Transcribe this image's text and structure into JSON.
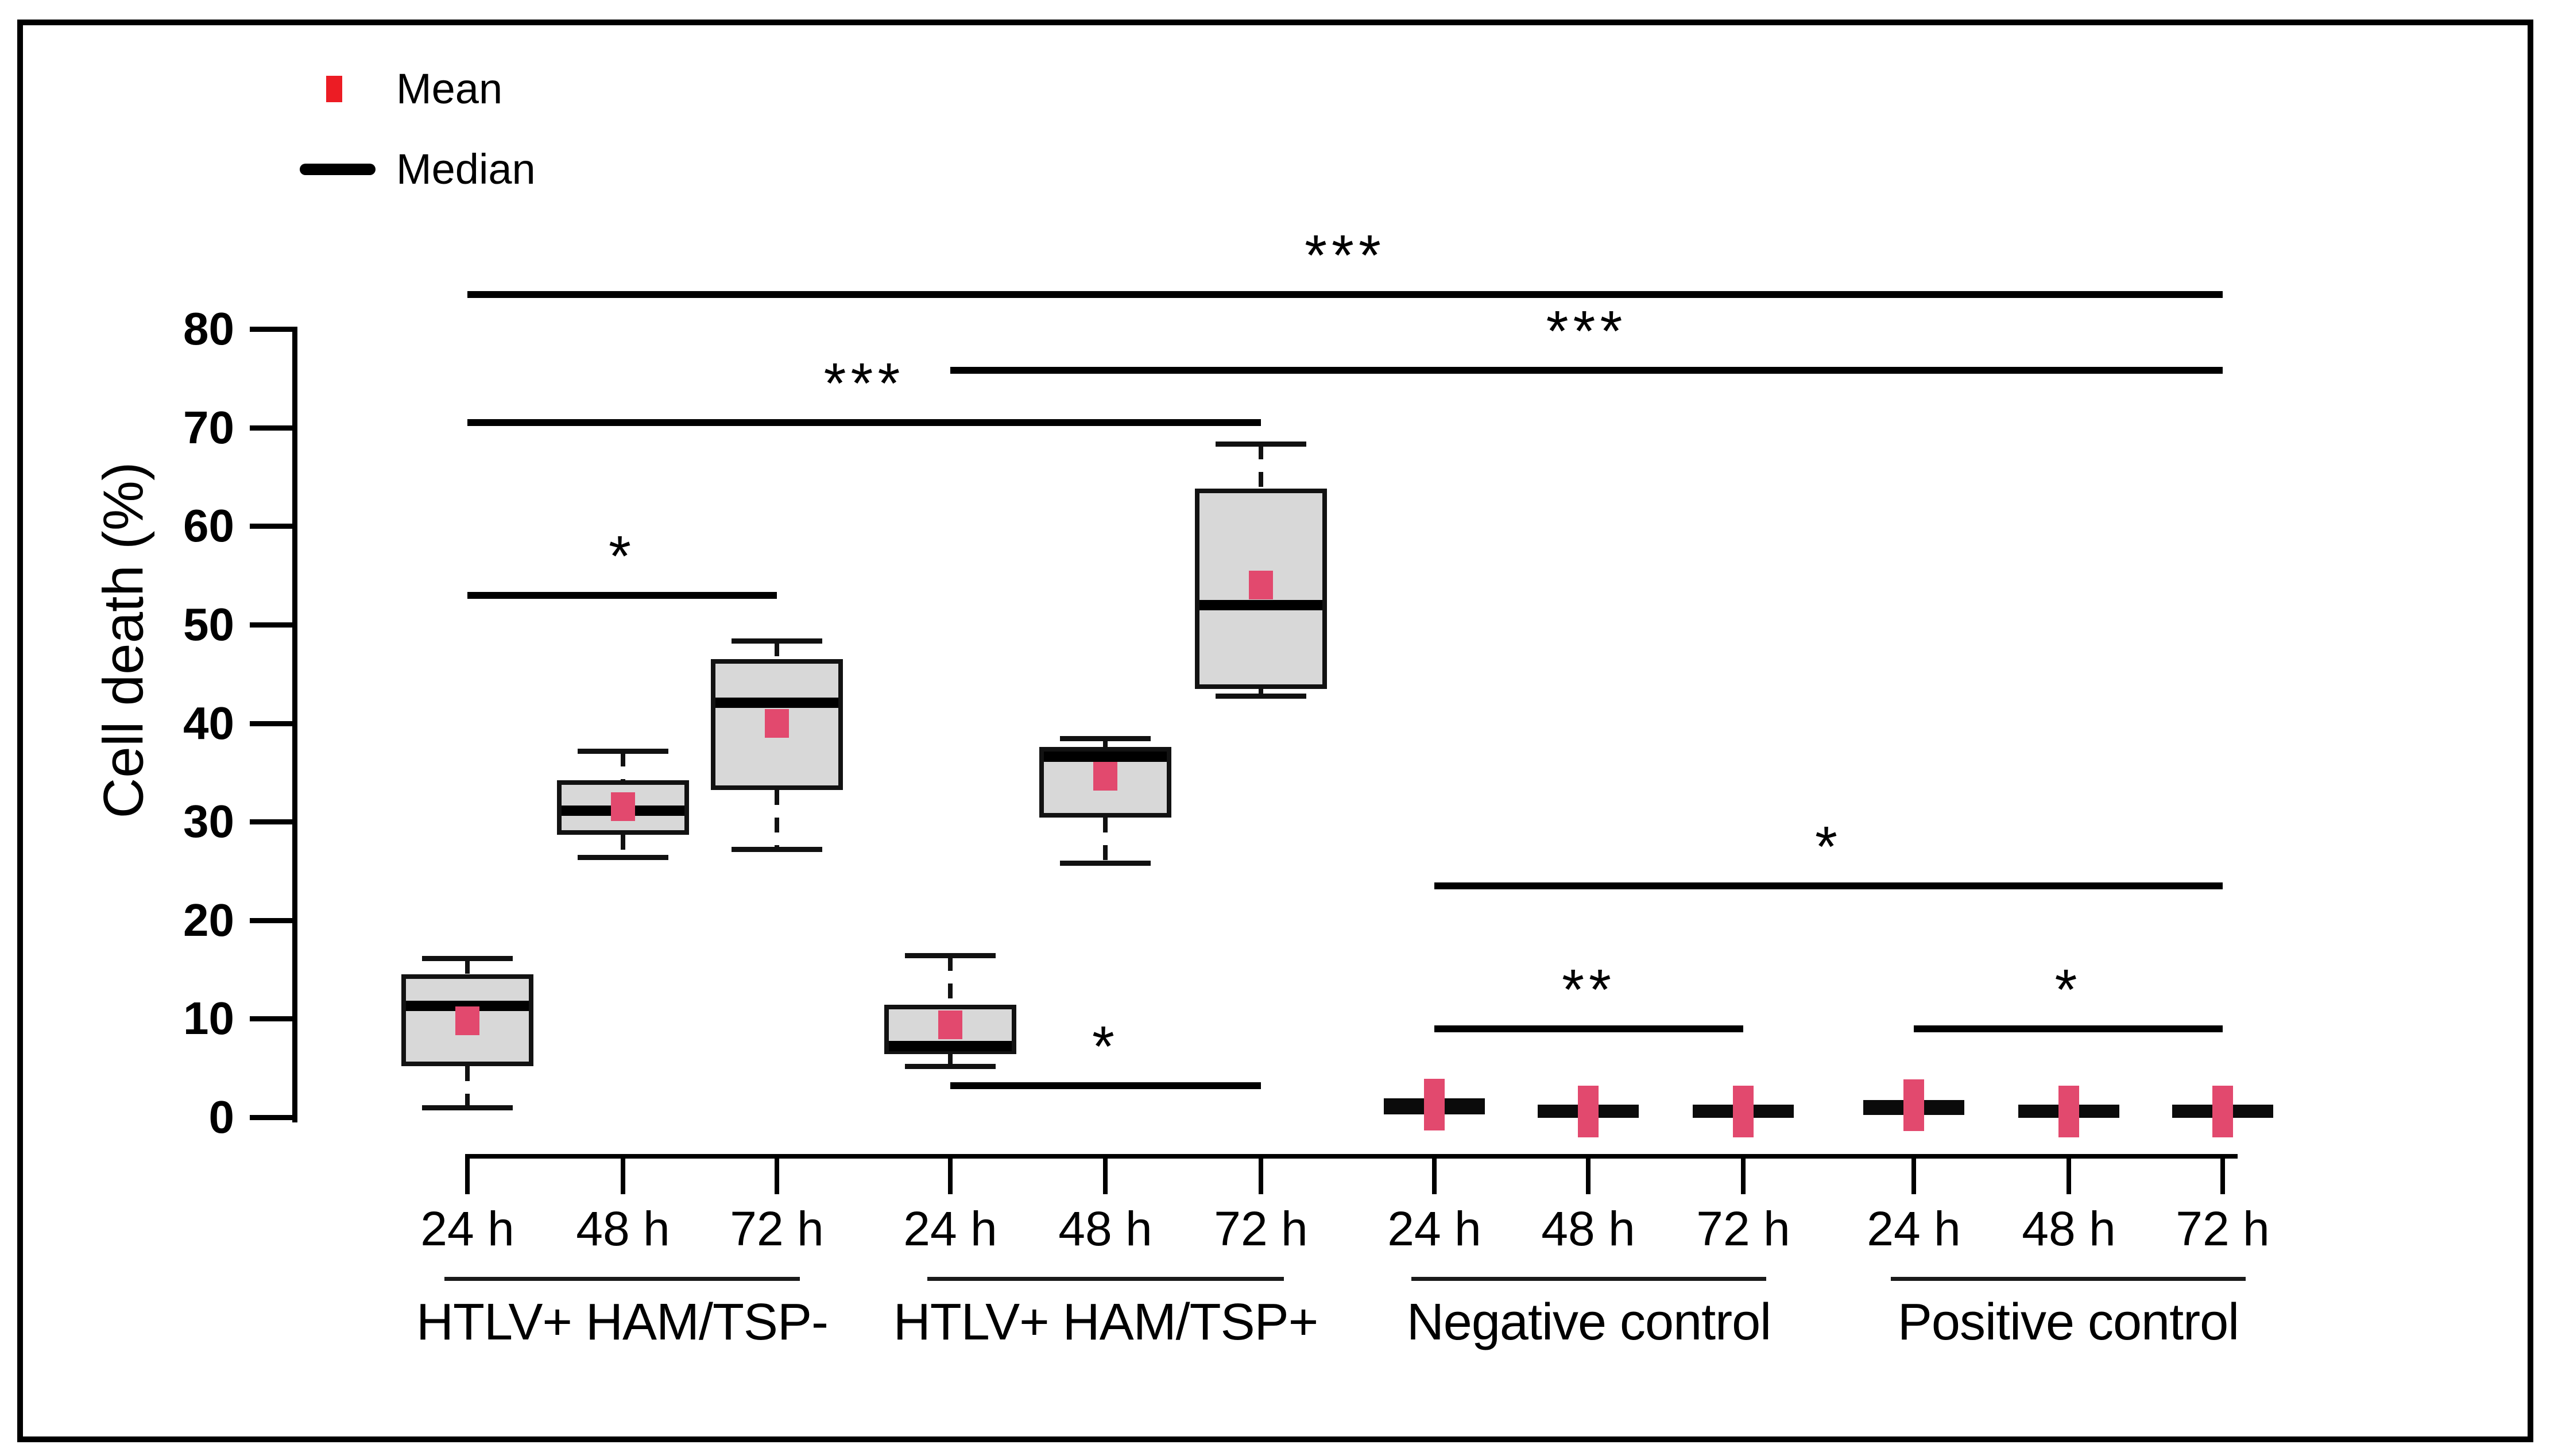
{
  "legend": {
    "items": [
      {
        "label": "Mean",
        "marker": "red-square",
        "color": "#ec1c24"
      },
      {
        "label": "Median",
        "marker": "black-line",
        "color": "#000000"
      }
    ]
  },
  "chart_data": {
    "type": "boxplot",
    "title": "",
    "ylabel": "Cell death (%)",
    "xlabel": "",
    "ylim": [
      0,
      80
    ],
    "yticks": [
      0,
      10,
      20,
      30,
      40,
      50,
      60,
      70,
      80
    ],
    "grid": false,
    "legend_position": "top-left",
    "timepoints": [
      "24 h",
      "48 h",
      "72 h"
    ],
    "groups": [
      {
        "label": "HTLV+ HAM/TSP-",
        "boxes": [
          {
            "timepoint": "24 h",
            "whisker_low": 1.0,
            "q1": 5.2,
            "median": 11.3,
            "q3": 14.5,
            "whisker_high": 16.1,
            "mean": 9.8
          },
          {
            "timepoint": "48 h",
            "whisker_low": 26.4,
            "q1": 28.7,
            "median": 31.1,
            "q3": 34.2,
            "whisker_high": 37.1,
            "mean": 31.5
          },
          {
            "timepoint": "72 h",
            "whisker_low": 27.2,
            "q1": 33.2,
            "median": 42.1,
            "q3": 46.5,
            "whisker_high": 48.3,
            "mean": 40.0
          }
        ]
      },
      {
        "label": "HTLV+ HAM/TSP+",
        "boxes": [
          {
            "timepoint": "24 h",
            "whisker_low": 5.2,
            "q1": 6.4,
            "median": 7.2,
            "q3": 11.4,
            "whisker_high": 16.4,
            "mean": 9.4
          },
          {
            "timepoint": "48 h",
            "whisker_low": 25.8,
            "q1": 30.4,
            "median": 36.6,
            "q3": 37.6,
            "whisker_high": 38.4,
            "mean": 34.6
          },
          {
            "timepoint": "72 h",
            "whisker_low": 42.8,
            "q1": 43.5,
            "median": 52.0,
            "q3": 63.8,
            "whisker_high": 68.3,
            "mean": 54.0
          }
        ]
      },
      {
        "label": "Negative control",
        "boxes": [
          {
            "timepoint": "24 h",
            "whisker_low": 0.6,
            "q1": 0.8,
            "median": 1.1,
            "q3": 1.5,
            "whisker_high": 1.6,
            "mean": 1.3
          },
          {
            "timepoint": "48 h",
            "whisker_low": 0.3,
            "q1": 0.4,
            "median": 0.6,
            "q3": 0.8,
            "whisker_high": 0.9,
            "mean": 0.6
          },
          {
            "timepoint": "72 h",
            "whisker_low": 0.3,
            "q1": 0.4,
            "median": 0.6,
            "q3": 0.8,
            "whisker_high": 0.9,
            "mean": 0.6
          }
        ]
      },
      {
        "label": "Positive control",
        "boxes": [
          {
            "timepoint": "24 h",
            "whisker_low": 0.6,
            "q1": 0.8,
            "median": 1.0,
            "q3": 1.4,
            "whisker_high": 1.5,
            "mean": 1.2
          },
          {
            "timepoint": "48 h",
            "whisker_low": 0.3,
            "q1": 0.4,
            "median": 0.6,
            "q3": 0.8,
            "whisker_high": 0.9,
            "mean": 0.6
          },
          {
            "timepoint": "72 h",
            "whisker_low": 0.3,
            "q1": 0.4,
            "median": 0.6,
            "q3": 0.8,
            "whisker_high": 0.9,
            "mean": 0.6
          }
        ]
      }
    ],
    "significance_bars": [
      {
        "from_group": 0,
        "from_box": 0,
        "to_group": 3,
        "to_box": 2,
        "y": 83.5,
        "label": "***"
      },
      {
        "from_group": 1,
        "from_box": 0,
        "to_group": 3,
        "to_box": 2,
        "y": 75.8,
        "label": "***"
      },
      {
        "from_group": 0,
        "from_box": 0,
        "to_group": 1,
        "to_box": 2,
        "y": 70.5,
        "label": "***"
      },
      {
        "from_group": 0,
        "from_box": 0,
        "to_group": 0,
        "to_box": 2,
        "y": 53.0,
        "label": "*"
      },
      {
        "from_group": 1,
        "from_box": 0,
        "to_group": 1,
        "to_box": 2,
        "y": 3.2,
        "label": "*"
      },
      {
        "from_group": 2,
        "from_box": 0,
        "to_group": 2,
        "to_box": 2,
        "y": 9.0,
        "label": "**"
      },
      {
        "from_group": 3,
        "from_box": 0,
        "to_group": 3,
        "to_box": 2,
        "y": 9.0,
        "label": "*"
      },
      {
        "from_group": 2,
        "from_box": 0,
        "to_group": 3,
        "to_box": 2,
        "y": 23.5,
        "label": "*"
      }
    ],
    "colors": {
      "box_fill": "#d8d8d8",
      "box_stroke": "#121212",
      "median": "#000000",
      "mean_marker": "#e2496e",
      "legend_mean": "#ec1c24"
    }
  }
}
